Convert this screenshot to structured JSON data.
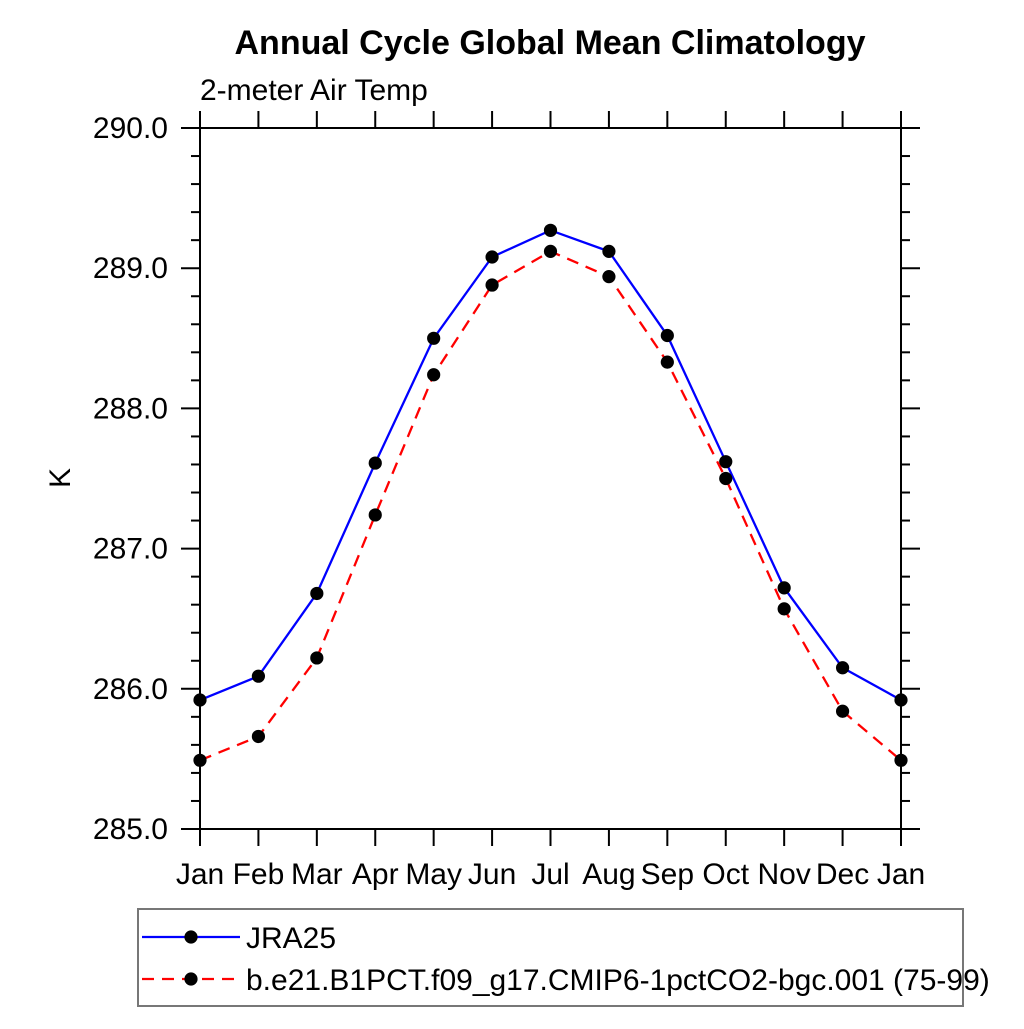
{
  "chart_data": {
    "type": "line",
    "title": "Annual Cycle Global Mean Climatology",
    "subtitle": "2-meter Air Temp",
    "ylabel": "K",
    "xlabel": "",
    "x_tick_labels": [
      "Jan",
      "Feb",
      "Mar",
      "Apr",
      "May",
      "Jun",
      "Jul",
      "Aug",
      "Sep",
      "Oct",
      "Nov",
      "Dec",
      "Jan"
    ],
    "ylim": [
      285.0,
      290.0
    ],
    "y_major_step": 1.0,
    "y_minor_step": 0.2,
    "y_tick_labels": [
      "285.0",
      "286.0",
      "287.0",
      "288.0",
      "289.0",
      "290.0"
    ],
    "y_tick_values": [
      285.0,
      286.0,
      287.0,
      288.0,
      289.0,
      290.0
    ],
    "grid": false,
    "legend_position": "bottom-left-box",
    "background_color": "#ffffff",
    "axis_color": "#000000",
    "marker_shape": "filled-circle",
    "series": [
      {
        "name": "JRA25",
        "color": "#0000ff",
        "line_style": "solid",
        "marker_color": "#000000",
        "values": [
          285.92,
          286.09,
          286.68,
          287.61,
          288.5,
          289.08,
          289.27,
          289.12,
          288.52,
          287.62,
          286.72,
          286.15,
          285.92
        ]
      },
      {
        "name": "b.e21.B1PCT.f09_g17.CMIP6-1pctCO2-bgc.001 (75-99)",
        "color": "#ff0000",
        "line_style": "dashed",
        "marker_color": "#000000",
        "values": [
          285.49,
          285.66,
          286.22,
          287.24,
          288.24,
          288.88,
          289.12,
          288.94,
          288.33,
          287.5,
          286.57,
          285.84,
          285.49
        ]
      }
    ]
  }
}
